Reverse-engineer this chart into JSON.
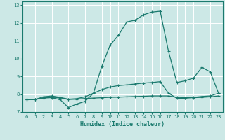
{
  "xlabel": "Humidex (Indice chaleur)",
  "bg_color": "#cce8e6",
  "grid_color": "#ffffff",
  "line_color": "#1a7a6e",
  "xlim": [
    -0.5,
    23.5
  ],
  "ylim": [
    7.0,
    13.2
  ],
  "yticks": [
    7,
    8,
    9,
    10,
    11,
    12,
    13
  ],
  "xticks": [
    0,
    1,
    2,
    3,
    4,
    5,
    6,
    7,
    8,
    9,
    10,
    11,
    12,
    13,
    14,
    15,
    16,
    17,
    18,
    19,
    20,
    21,
    22,
    23
  ],
  "line1_x": [
    0,
    1,
    2,
    3,
    4,
    5,
    6,
    7,
    8,
    9,
    10,
    11,
    12,
    13,
    14,
    15,
    16,
    17,
    18,
    19,
    20,
    21,
    22,
    23
  ],
  "line1_y": [
    7.7,
    7.7,
    7.8,
    7.8,
    7.7,
    7.25,
    7.45,
    7.6,
    8.05,
    9.55,
    10.75,
    11.3,
    12.05,
    12.15,
    12.45,
    12.6,
    12.65,
    10.4,
    8.65,
    8.75,
    8.9,
    9.5,
    9.25,
    8.05
  ],
  "line2_x": [
    0,
    1,
    2,
    3,
    4,
    5,
    6,
    7,
    8,
    9,
    10,
    11,
    12,
    13,
    14,
    15,
    16,
    17,
    18,
    19,
    20,
    21,
    22,
    23
  ],
  "line2_y": [
    7.7,
    7.7,
    7.85,
    7.9,
    7.82,
    7.72,
    7.75,
    7.85,
    8.05,
    8.25,
    8.4,
    8.48,
    8.52,
    8.57,
    8.62,
    8.65,
    8.7,
    8.05,
    7.77,
    7.77,
    7.82,
    7.87,
    7.9,
    8.05
  ],
  "line3_x": [
    0,
    1,
    2,
    3,
    4,
    5,
    6,
    7,
    8,
    9,
    10,
    11,
    12,
    13,
    14,
    15,
    16,
    17,
    18,
    19,
    20,
    21,
    22,
    23
  ],
  "line3_y": [
    7.7,
    7.7,
    7.78,
    7.82,
    7.8,
    7.7,
    7.72,
    7.76,
    7.78,
    7.8,
    7.82,
    7.83,
    7.85,
    7.87,
    7.88,
    7.9,
    7.9,
    7.9,
    7.82,
    7.8,
    7.8,
    7.82,
    7.85,
    7.9
  ]
}
